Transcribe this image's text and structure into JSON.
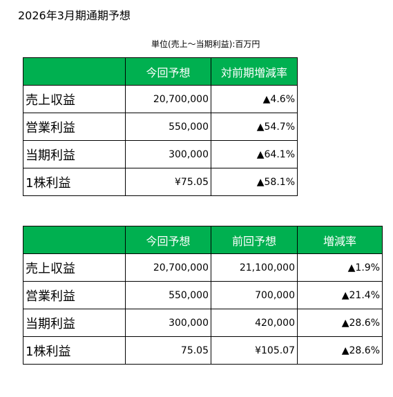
{
  "title": "2026年3月期通期予想",
  "unit_note": "単位(売上〜当期利益):百万円",
  "table1": {
    "headers": [
      "",
      "今回予想",
      "対前期増減率"
    ],
    "rows": [
      {
        "label": "売上収益",
        "forecast": "20,700,000",
        "yoy": "▲4.6%"
      },
      {
        "label": "営業利益",
        "forecast": "550,000",
        "yoy": "▲54.7%"
      },
      {
        "label": "当期利益",
        "forecast": "300,000",
        "yoy": "▲64.1%"
      },
      {
        "label": "1株利益",
        "forecast": "¥75.05",
        "yoy": "▲58.1%"
      }
    ]
  },
  "table2": {
    "headers": [
      "",
      "今回予想",
      "前回予想",
      "増減率"
    ],
    "rows": [
      {
        "label": "売上収益",
        "current": "20,700,000",
        "previous": "21,100,000",
        "change": "▲1.9%"
      },
      {
        "label": "営業利益",
        "current": "550,000",
        "previous": "700,000",
        "change": "▲21.4%"
      },
      {
        "label": "当期利益",
        "current": "300,000",
        "previous": "420,000",
        "change": "▲28.6%"
      },
      {
        "label": "1株利益",
        "current": "75.05",
        "previous": "¥105.07",
        "change": "▲28.6%"
      }
    ]
  },
  "colors": {
    "header_bg": "#00b050",
    "header_text": "#ffffff",
    "border": "#000000"
  }
}
